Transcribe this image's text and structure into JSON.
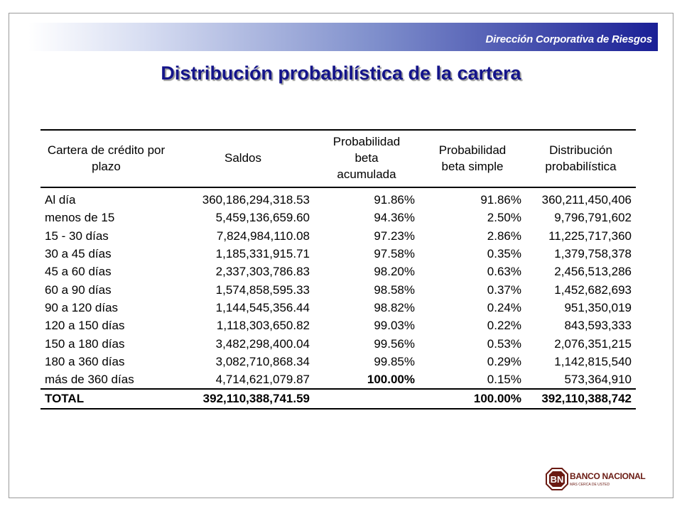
{
  "header": {
    "department": "Dirección Corporativa de Riesgos",
    "title": "Distribución probabilística de la cartera"
  },
  "table": {
    "headers": [
      "Cartera de crédito por plazo",
      "Saldos",
      "Probabilidad beta acumulada",
      "Probabilidad beta simple",
      "Distribución probabilística"
    ],
    "rows": [
      [
        "Al día",
        "360,186,294,318.53",
        "91.86%",
        "91.86%",
        "360,211,450,406"
      ],
      [
        "menos de 15",
        "5,459,136,659.60",
        "94.36%",
        "2.50%",
        "9,796,791,602"
      ],
      [
        "15 - 30 días",
        "7,824,984,110.08",
        "97.23%",
        "2.86%",
        "11,225,717,360"
      ],
      [
        "30 a 45 días",
        "1,185,331,915.71",
        "97.58%",
        "0.35%",
        "1,379,758,378"
      ],
      [
        "45 a 60 días",
        "2,337,303,786.83",
        "98.20%",
        "0.63%",
        "2,456,513,286"
      ],
      [
        "60 a 90 días",
        "1,574,858,595.33",
        "98.58%",
        "0.37%",
        "1,452,682,693"
      ],
      [
        "90 a 120 días",
        "1,144,545,356.44",
        "98.82%",
        "0.24%",
        "951,350,019"
      ],
      [
        "120 a 150 días",
        "1,118,303,650.82",
        "99.03%",
        "0.22%",
        "843,593,333"
      ],
      [
        "150 a 180 días",
        "3,482,298,400.04",
        "99.56%",
        "0.53%",
        "2,076,351,215"
      ],
      [
        "180 a 360 días",
        "3,082,710,868.34",
        "99.85%",
        "0.29%",
        "1,142,815,540"
      ],
      [
        "más de 360 días",
        "4,714,621,079.87",
        "100.00%",
        "0.15%",
        "573,364,910"
      ]
    ],
    "total": [
      "TOTAL",
      "392,110,388,741.59",
      "",
      "100.00%",
      "392,110,388,742"
    ]
  },
  "logo": {
    "mark": "BN",
    "name": "BANCO NACIONAL",
    "tagline": "MÁS CERCA DE USTED",
    "color": "#6a1a12"
  }
}
